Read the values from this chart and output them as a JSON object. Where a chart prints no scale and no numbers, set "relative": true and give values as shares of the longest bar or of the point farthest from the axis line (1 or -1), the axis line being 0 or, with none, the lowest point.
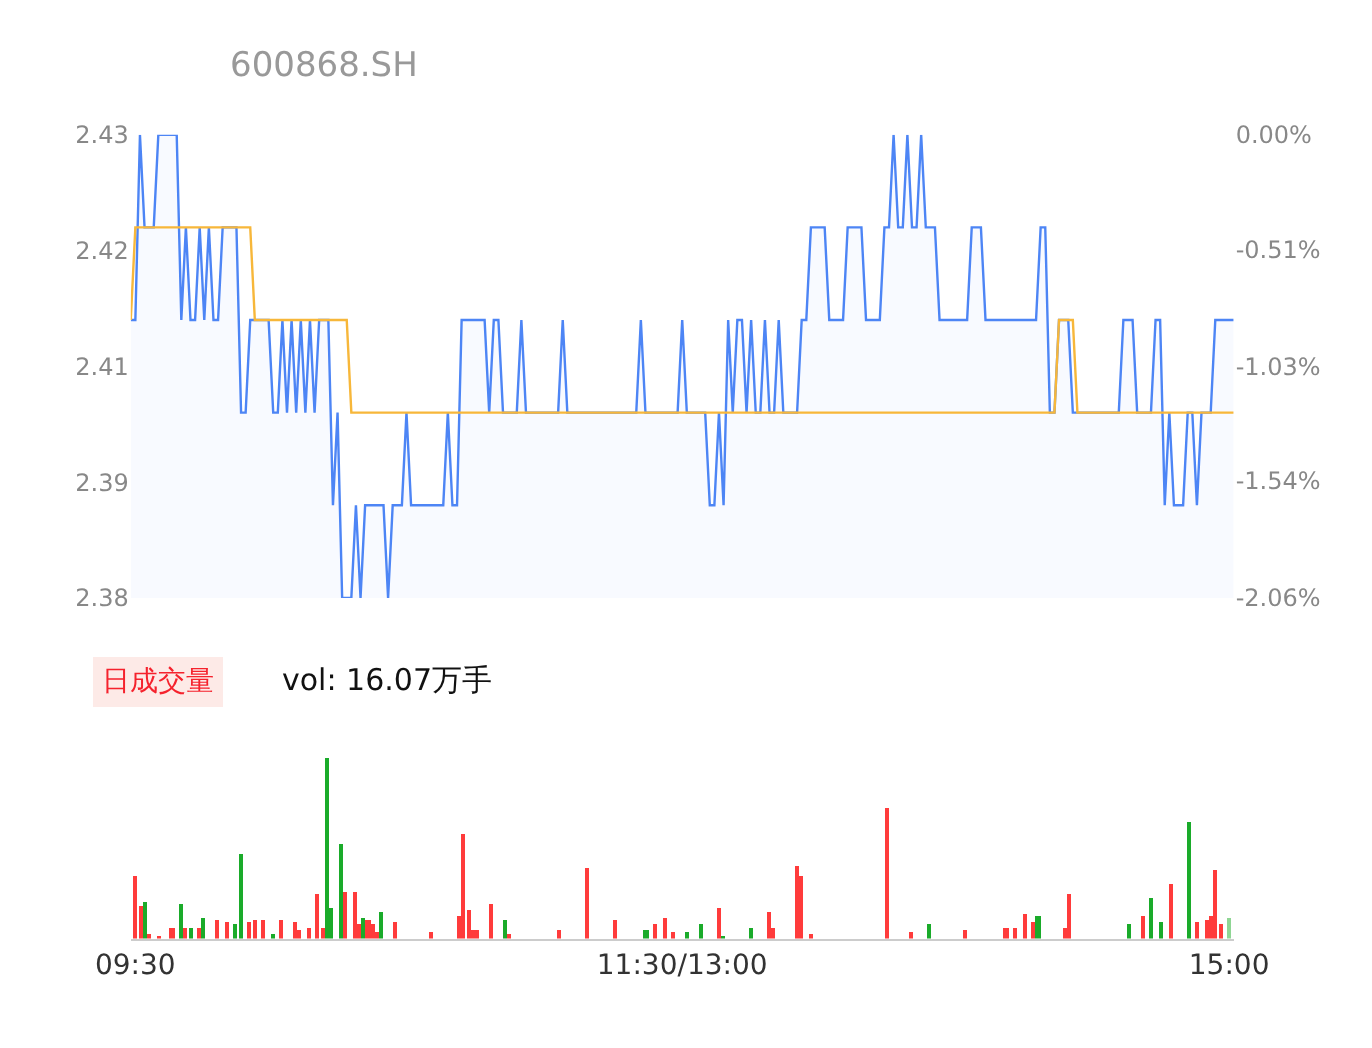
{
  "chart_data": [
    {
      "type": "line",
      "title": "600868.SH",
      "tick_labels": "y",
      "marker": "none",
      "categories": [
        null,
        null,
        null,
        null,
        null,
        null,
        null,
        null,
        null,
        null,
        null,
        null,
        null,
        null,
        null,
        null,
        null,
        null,
        null,
        null,
        null,
        null,
        null,
        null,
        null,
        null,
        null,
        null,
        null,
        null,
        null,
        null,
        null,
        null,
        null,
        null,
        null,
        null,
        null,
        null,
        null,
        null,
        null,
        null,
        null,
        null,
        null,
        null,
        null,
        null,
        null,
        null,
        null,
        null,
        null,
        null,
        null,
        null,
        null,
        null,
        null,
        null,
        null,
        null,
        null,
        null,
        null,
        null,
        null,
        null,
        null,
        null,
        null,
        null,
        null,
        null,
        null,
        null,
        null,
        null,
        null,
        null,
        null,
        null,
        null,
        null,
        null,
        null,
        null,
        null,
        null,
        null,
        null,
        null,
        null,
        null,
        null,
        null,
        null,
        null,
        null,
        null,
        null,
        null,
        null,
        null,
        null,
        null,
        null,
        null,
        null,
        null,
        null,
        null,
        null,
        null,
        null,
        null,
        null,
        null,
        null,
        null,
        null,
        null,
        null,
        null,
        null,
        null,
        null,
        null,
        null,
        null,
        null,
        null,
        null,
        null,
        null,
        null,
        null,
        null,
        null,
        null,
        null,
        null,
        null,
        null,
        null,
        null,
        null,
        null,
        null,
        null,
        null,
        null,
        null,
        null,
        null,
        null,
        null,
        null,
        null,
        null,
        null,
        null,
        null,
        null,
        null,
        null,
        null,
        null,
        null,
        null,
        null,
        null,
        null,
        null,
        null,
        null,
        null,
        null,
        null,
        null,
        null,
        null,
        null,
        null,
        null,
        null,
        null,
        null,
        null,
        null,
        null,
        null,
        null,
        null,
        null,
        null,
        null,
        null,
        null,
        null,
        null,
        null,
        null,
        null,
        null,
        null,
        null,
        null,
        null,
        null,
        null,
        null,
        null,
        null,
        null,
        null,
        null,
        null,
        null,
        null,
        null,
        null,
        null,
        null,
        null,
        null,
        null,
        null,
        null,
        null,
        null,
        null,
        null,
        null,
        null,
        null,
        null,
        null,
        null
      ],
      "ylim": [
        2.38,
        2.43
      ],
      "yticks": [
        2.43,
        {
          "value": 2.4175,
          "label": "2.42"
        },
        {
          "value": 2.405,
          "label": "2.41"
        },
        {
          "value": 2.3925,
          "label": "2.39"
        },
        2.38
      ],
      "y2lim": [
        -2.06,
        0
      ],
      "y2ticks": [
        {
          "value": 0,
          "label": "0.00%"
        },
        {
          "value": -0.51,
          "label": "-0.51%"
        },
        {
          "value": -1.03,
          "label": "-1.03%"
        },
        {
          "value": -1.54,
          "label": "-1.54%"
        },
        {
          "value": -2.06,
          "label": "-2.06%"
        }
      ],
      "series": [
        {
          "type": "area",
          "color": "#4d85f5",
          "values": [
            2.41,
            2.41,
            2.43,
            2.42,
            2.42,
            2.42,
            2.43,
            2.43,
            2.43,
            2.43,
            2.43,
            2.41,
            2.42,
            2.41,
            2.41,
            2.42,
            2.41,
            2.42,
            2.41,
            2.41,
            2.42,
            2.42,
            2.42,
            2.42,
            2.4,
            2.4,
            2.41,
            2.41,
            2.41,
            2.41,
            2.41,
            2.4,
            2.4,
            2.41,
            2.4,
            2.41,
            2.4,
            2.41,
            2.4,
            2.41,
            2.4,
            2.41,
            2.41,
            2.41,
            2.39,
            2.4,
            2.38,
            2.38,
            2.38,
            2.39,
            2.38,
            2.39,
            2.39,
            2.39,
            2.39,
            2.39,
            2.38,
            2.39,
            2.39,
            2.39,
            2.4,
            2.39,
            2.39,
            2.39,
            2.39,
            2.39,
            2.39,
            2.39,
            2.39,
            2.4,
            2.39,
            2.39,
            2.41,
            2.41,
            2.41,
            2.41,
            2.41,
            2.41,
            2.4,
            2.41,
            2.41,
            2.4,
            2.4,
            2.4,
            2.4,
            2.41,
            2.4,
            2.4,
            2.4,
            2.4,
            2.4,
            2.4,
            2.4,
            2.4,
            2.41,
            2.4,
            2.4,
            2.4,
            2.4,
            2.4,
            2.4,
            2.4,
            2.4,
            2.4,
            2.4,
            2.4,
            2.4,
            2.4,
            2.4,
            2.4,
            2.4,
            2.41,
            2.4,
            2.4,
            2.4,
            2.4,
            2.4,
            2.4,
            2.4,
            2.4,
            2.41,
            2.4,
            2.4,
            2.4,
            2.4,
            2.4,
            2.39,
            2.39,
            2.4,
            2.39,
            2.41,
            2.4,
            2.41,
            2.41,
            2.4,
            2.41,
            2.4,
            2.4,
            2.41,
            2.4,
            2.4,
            2.41,
            2.4,
            2.4,
            2.4,
            2.4,
            2.41,
            2.41,
            2.42,
            2.42,
            2.42,
            2.42,
            2.41,
            2.41,
            2.41,
            2.41,
            2.42,
            2.42,
            2.42,
            2.42,
            2.41,
            2.41,
            2.41,
            2.41,
            2.42,
            2.42,
            2.43,
            2.42,
            2.42,
            2.43,
            2.42,
            2.42,
            2.43,
            2.42,
            2.42,
            2.42,
            2.41,
            2.41,
            2.41,
            2.41,
            2.41,
            2.41,
            2.41,
            2.42,
            2.42,
            2.42,
            2.41,
            2.41,
            2.41,
            2.41,
            2.41,
            2.41,
            2.41,
            2.41,
            2.41,
            2.41,
            2.41,
            2.41,
            2.42,
            2.42,
            2.4,
            2.4,
            2.41,
            2.41,
            2.41,
            2.4,
            2.4,
            2.4,
            2.4,
            2.4,
            2.4,
            2.4,
            2.4,
            2.4,
            2.4,
            2.4,
            2.41,
            2.41,
            2.41,
            2.4,
            2.4,
            2.4,
            2.4,
            2.41,
            2.41,
            2.39,
            2.4,
            2.39,
            2.39,
            2.39,
            2.4,
            2.4,
            2.39,
            2.4,
            2.4,
            2.4,
            2.41,
            2.41,
            2.41,
            2.41,
            2.41
          ]
        },
        {
          "type": "line",
          "color": "#f7b73a",
          "values": [
            2.41,
            2.42,
            2.42,
            2.42,
            2.42,
            2.42,
            2.42,
            2.42,
            2.42,
            2.42,
            2.42,
            2.42,
            2.42,
            2.42,
            2.42,
            2.42,
            2.42,
            2.42,
            2.42,
            2.42,
            2.42,
            2.42,
            2.42,
            2.42,
            2.42,
            2.42,
            2.42,
            2.41,
            2.41,
            2.41,
            2.41,
            2.41,
            2.41,
            2.41,
            2.41,
            2.41,
            2.41,
            2.41,
            2.41,
            2.41,
            2.41,
            2.41,
            2.41,
            2.41,
            2.41,
            2.41,
            2.41,
            2.41,
            2.4,
            2.4,
            2.4,
            2.4,
            2.4,
            2.4,
            2.4,
            2.4,
            2.4,
            2.4,
            2.4,
            2.4,
            2.4,
            2.4,
            2.4,
            2.4,
            2.4,
            2.4,
            2.4,
            2.4,
            2.4,
            2.4,
            2.4,
            2.4,
            2.4,
            2.4,
            2.4,
            2.4,
            2.4,
            2.4,
            2.4,
            2.4,
            2.4,
            2.4,
            2.4,
            2.4,
            2.4,
            2.4,
            2.4,
            2.4,
            2.4,
            2.4,
            2.4,
            2.4,
            2.4,
            2.4,
            2.4,
            2.4,
            2.4,
            2.4,
            2.4,
            2.4,
            2.4,
            2.4,
            2.4,
            2.4,
            2.4,
            2.4,
            2.4,
            2.4,
            2.4,
            2.4,
            2.4,
            2.4,
            2.4,
            2.4,
            2.4,
            2.4,
            2.4,
            2.4,
            2.4,
            2.4,
            2.4,
            2.4,
            2.4,
            2.4,
            2.4,
            2.4,
            2.4,
            2.4,
            2.4,
            2.4,
            2.4,
            2.4,
            2.4,
            2.4,
            2.4,
            2.4,
            2.4,
            2.4,
            2.4,
            2.4,
            2.4,
            2.4,
            2.4,
            2.4,
            2.4,
            2.4,
            2.4,
            2.4,
            2.4,
            2.4,
            2.4,
            2.4,
            2.4,
            2.4,
            2.4,
            2.4,
            2.4,
            2.4,
            2.4,
            2.4,
            2.4,
            2.4,
            2.4,
            2.4,
            2.4,
            2.4,
            2.4,
            2.4,
            2.4,
            2.4,
            2.4,
            2.4,
            2.4,
            2.4,
            2.4,
            2.4,
            2.4,
            2.4,
            2.4,
            2.4,
            2.4,
            2.4,
            2.4,
            2.4,
            2.4,
            2.4,
            2.4,
            2.4,
            2.4,
            2.4,
            2.4,
            2.4,
            2.4,
            2.4,
            2.4,
            2.4,
            2.4,
            2.4,
            2.4,
            2.4,
            2.4,
            2.4,
            2.41,
            2.41,
            2.41,
            2.41,
            2.4,
            2.4,
            2.4,
            2.4,
            2.4,
            2.4,
            2.4,
            2.4,
            2.4,
            2.4,
            2.4,
            2.4,
            2.4,
            2.4,
            2.4,
            2.4,
            2.4,
            2.4,
            2.4,
            2.4,
            2.4,
            2.4,
            2.4,
            2.4,
            2.4,
            2.4,
            2.4,
            2.4,
            2.4,
            2.4,
            2.4,
            2.4,
            2.4,
            2.4,
            2.4
          ]
        }
      ]
    },
    {
      "type": "bar",
      "relative": true,
      "annotations": [
        "日成交量",
        "vol: 16.07万手"
      ],
      "categories": [
        "09:30",
        null,
        null,
        null,
        null,
        null,
        null,
        null,
        null,
        null,
        null,
        null,
        null,
        null,
        null,
        null,
        null,
        null,
        null,
        null,
        null,
        null,
        null,
        null,
        null,
        null,
        null,
        null,
        null,
        null,
        null,
        null,
        null,
        null,
        null,
        null,
        null,
        null,
        null,
        null,
        null,
        null,
        null,
        null,
        null,
        null,
        null,
        null,
        null,
        null,
        null,
        null,
        null,
        null,
        null,
        null,
        null,
        null,
        null,
        null,
        null,
        null,
        null,
        null,
        null,
        null,
        null,
        null,
        null,
        null,
        null,
        null,
        null,
        null,
        null,
        null,
        null,
        null,
        null,
        null,
        null,
        null,
        null,
        null,
        null,
        null,
        null,
        null,
        null,
        null,
        null,
        null,
        null,
        null,
        null,
        null,
        null,
        null,
        null,
        null,
        null,
        null,
        null,
        null,
        null,
        null,
        null,
        null,
        null,
        null,
        null,
        null,
        null,
        null,
        null,
        null,
        null,
        null,
        null,
        null,
        "11:30/13:00",
        null,
        null,
        null,
        null,
        null,
        null,
        null,
        null,
        null,
        null,
        null,
        null,
        null,
        null,
        null,
        null,
        null,
        null,
        null,
        null,
        null,
        null,
        null,
        null,
        null,
        null,
        null,
        null,
        null,
        null,
        null,
        null,
        null,
        null,
        null,
        null,
        null,
        null,
        null,
        null,
        null,
        null,
        null,
        null,
        null,
        null,
        null,
        null,
        null,
        null,
        null,
        null,
        null,
        null,
        null,
        null,
        null,
        null,
        null,
        null,
        null,
        null,
        null,
        null,
        null,
        null,
        null,
        null,
        null,
        null,
        null,
        null,
        null,
        null,
        null,
        null,
        null,
        null,
        null,
        null,
        null,
        null,
        null,
        null,
        null,
        null,
        null,
        null,
        null,
        null,
        null,
        null,
        null,
        null,
        null,
        null,
        null,
        null,
        null,
        null,
        null,
        null,
        null,
        null,
        null,
        null,
        null,
        null,
        null,
        null,
        null,
        null,
        null,
        null,
        null,
        null,
        null,
        null,
        null,
        "15:00"
      ],
      "values": [
        0.35,
        0.18,
        0.2,
        0.03,
        null,
        0.02,
        null,
        null,
        0.06,
        null,
        0.19,
        0.06,
        0.06,
        null,
        0.06,
        0.12,
        null,
        null,
        0.11,
        null,
        0.09,
        null,
        0.08,
        0.47,
        null,
        0.09,
        0.11,
        null,
        0.1,
        null,
        0.03,
        null,
        0.11,
        null,
        null,
        0.09,
        0.05,
        null,
        0.06,
        null,
        0.25,
        0.06,
        1,
        0.17,
        null,
        0.52,
        0.26,
        null,
        0.26,
        0.08,
        0.12,
        0.11,
        0.08,
        0.04,
        0.15,
        null,
        null,
        0.09,
        null,
        null,
        null,
        null,
        null,
        null,
        null,
        0.04,
        null,
        null,
        null,
        null,
        null,
        0.13,
        0.58,
        0.16,
        0.05,
        0.05,
        null,
        null,
        0.19,
        null,
        null,
        0.11,
        0.03,
        null,
        null,
        null,
        null,
        null,
        null,
        null,
        null,
        null,
        null,
        0.05,
        null,
        null,
        null,
        null,
        null,
        0.39,
        null,
        null,
        null,
        null,
        null,
        0.1,
        null,
        null,
        null,
        null,
        null,
        null,
        0.05,
        null,
        0.08,
        null,
        0.12,
        null,
        0.04,
        null,
        null,
        0.04,
        null,
        null,
        0.08,
        null,
        null,
        null,
        0.17,
        0.02,
        null,
        null,
        null,
        null,
        null,
        0.06,
        null,
        null,
        null,
        0.15,
        0.06,
        null,
        null,
        null,
        null,
        0.4,
        0.35,
        null,
        0.03,
        null,
        null,
        null,
        null,
        null,
        null,
        null,
        null,
        null,
        null,
        null,
        null,
        null,
        null,
        null,
        null,
        0.72,
        null,
        null,
        null,
        null,
        0.04,
        null,
        null,
        null,
        0.08,
        null,
        null,
        null,
        null,
        null,
        null,
        null,
        0.05,
        null,
        null,
        null,
        null,
        null,
        null,
        null,
        null,
        0.06,
        null,
        0.06,
        null,
        0.14,
        null,
        0.09,
        0.13,
        null,
        null,
        null,
        null,
        null,
        0.06,
        0.25,
        null,
        null,
        null,
        null,
        null,
        null,
        null,
        null,
        null,
        null,
        null,
        null,
        0.08,
        null,
        null,
        0.13,
        null,
        0.23,
        null,
        0.09,
        null,
        0.3,
        null,
        null,
        null,
        0.65,
        null,
        0.09,
        null,
        0.1,
        0.13,
        0.38,
        0.08,
        null,
        0.12
      ],
      "colors": [
        "#ff3b3b",
        "#ff3b3b",
        "#1aab2a",
        "#ff3b3b",
        null,
        "#ff3b3b",
        null,
        null,
        "#ff3b3b",
        null,
        "#1aab2a",
        "#ff3b3b",
        "#1aab2a",
        null,
        "#ff3b3b",
        "#1aab2a",
        null,
        null,
        "#ff3b3b",
        null,
        "#ff3b3b",
        null,
        "#1aab2a",
        "#1aab2a",
        null,
        "#ff3b3b",
        "#ff3b3b",
        null,
        "#ff3b3b",
        null,
        "#1aab2a",
        null,
        "#ff3b3b",
        null,
        null,
        "#ff3b3b",
        "#ff3b3b",
        null,
        "#ff3b3b",
        null,
        "#ff3b3b",
        "#ff3b3b",
        "#1aab2a",
        "#1aab2a",
        null,
        "#1aab2a",
        "#ff3b3b",
        null,
        "#ff3b3b",
        "#ff3b3b",
        "#1aab2a",
        "#ff3b3b",
        "#ff3b3b",
        "#ff3b3b",
        "#1aab2a",
        null,
        null,
        "#ff3b3b",
        null,
        null,
        null,
        null,
        null,
        null,
        null,
        "#ff3b3b",
        null,
        null,
        null,
        null,
        null,
        "#ff3b3b",
        "#ff3b3b",
        "#ff3b3b",
        "#ff3b3b",
        "#ff3b3b",
        null,
        null,
        "#ff3b3b",
        null,
        null,
        "#1aab2a",
        "#ff3b3b",
        null,
        null,
        null,
        null,
        null,
        null,
        null,
        null,
        null,
        null,
        "#ff3b3b",
        null,
        null,
        null,
        null,
        null,
        "#ff3b3b",
        null,
        null,
        null,
        null,
        null,
        "#ff3b3b",
        null,
        null,
        null,
        null,
        null,
        null,
        "#1aab2a",
        null,
        "#ff3b3b",
        null,
        "#ff3b3b",
        null,
        "#ff3b3b",
        null,
        null,
        "#1aab2a",
        null,
        null,
        "#1aab2a",
        null,
        null,
        null,
        "#ff3b3b",
        "#1aab2a",
        null,
        null,
        null,
        null,
        null,
        "#1aab2a",
        null,
        null,
        null,
        "#ff3b3b",
        "#ff3b3b",
        null,
        null,
        null,
        null,
        "#ff3b3b",
        "#ff3b3b",
        null,
        "#ff3b3b",
        null,
        null,
        null,
        null,
        null,
        null,
        null,
        null,
        null,
        null,
        null,
        null,
        null,
        null,
        null,
        null,
        "#ff3b3b",
        null,
        null,
        null,
        null,
        "#ff3b3b",
        null,
        null,
        null,
        "#1aab2a",
        null,
        null,
        null,
        null,
        null,
        null,
        null,
        "#ff3b3b",
        null,
        null,
        null,
        null,
        null,
        null,
        null,
        null,
        "#ff3b3b",
        null,
        "#ff3b3b",
        null,
        "#ff3b3b",
        null,
        "#ff3b3b",
        "#1aab2a",
        null,
        null,
        null,
        null,
        null,
        "#ff3b3b",
        "#ff3b3b",
        null,
        null,
        null,
        null,
        null,
        null,
        null,
        null,
        null,
        null,
        null,
        null,
        "#1aab2a",
        null,
        null,
        "#ff3b3b",
        null,
        "#1aab2a",
        null,
        "#1aab2a",
        null,
        "#ff3b3b",
        null,
        null,
        null,
        "#1aab2a",
        null,
        "#ff3b3b",
        null,
        "#ff3b3b",
        "#ff3b3b",
        "#ff3b3b",
        "#ff3b3b",
        null,
        "#8fd694"
      ]
    }
  ]
}
